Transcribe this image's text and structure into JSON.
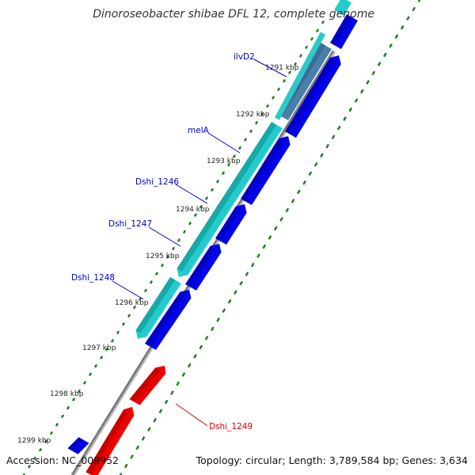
{
  "title": "Dinoroseobacter shibae DFL 12, complete genome",
  "footer": {
    "accession": "Accession: NC_009952",
    "summary": "Topology: circular; Length: 3,789,584 bp; Genes: 3,634"
  },
  "colors": {
    "forward_cds": "#0000ee",
    "reverse_cds": "#22cccc",
    "highlight_cds": "#ee0000",
    "rna_feature": "#4a7fa8",
    "backbone": "#777777",
    "tick_dots": "#1a7a1a",
    "label_blue": "#0000cc",
    "label_red": "#dd0000"
  },
  "kbp_ticks": [
    {
      "label": "1291 kbp"
    },
    {
      "label": "1292 kbp"
    },
    {
      "label": "1293 kbp"
    },
    {
      "label": "1294 kbp"
    },
    {
      "label": "1295 kbp"
    },
    {
      "label": "1296 kbp"
    },
    {
      "label": "1297 kbp"
    },
    {
      "label": "1298 kbp"
    },
    {
      "label": "1299 kbp"
    }
  ],
  "gene_labels": [
    {
      "name": "ilvD2"
    },
    {
      "name": "melA"
    },
    {
      "name": "Dshi_1246"
    },
    {
      "name": "Dshi_1247"
    },
    {
      "name": "Dshi_1248"
    },
    {
      "name": "Dshi_1249"
    }
  ]
}
